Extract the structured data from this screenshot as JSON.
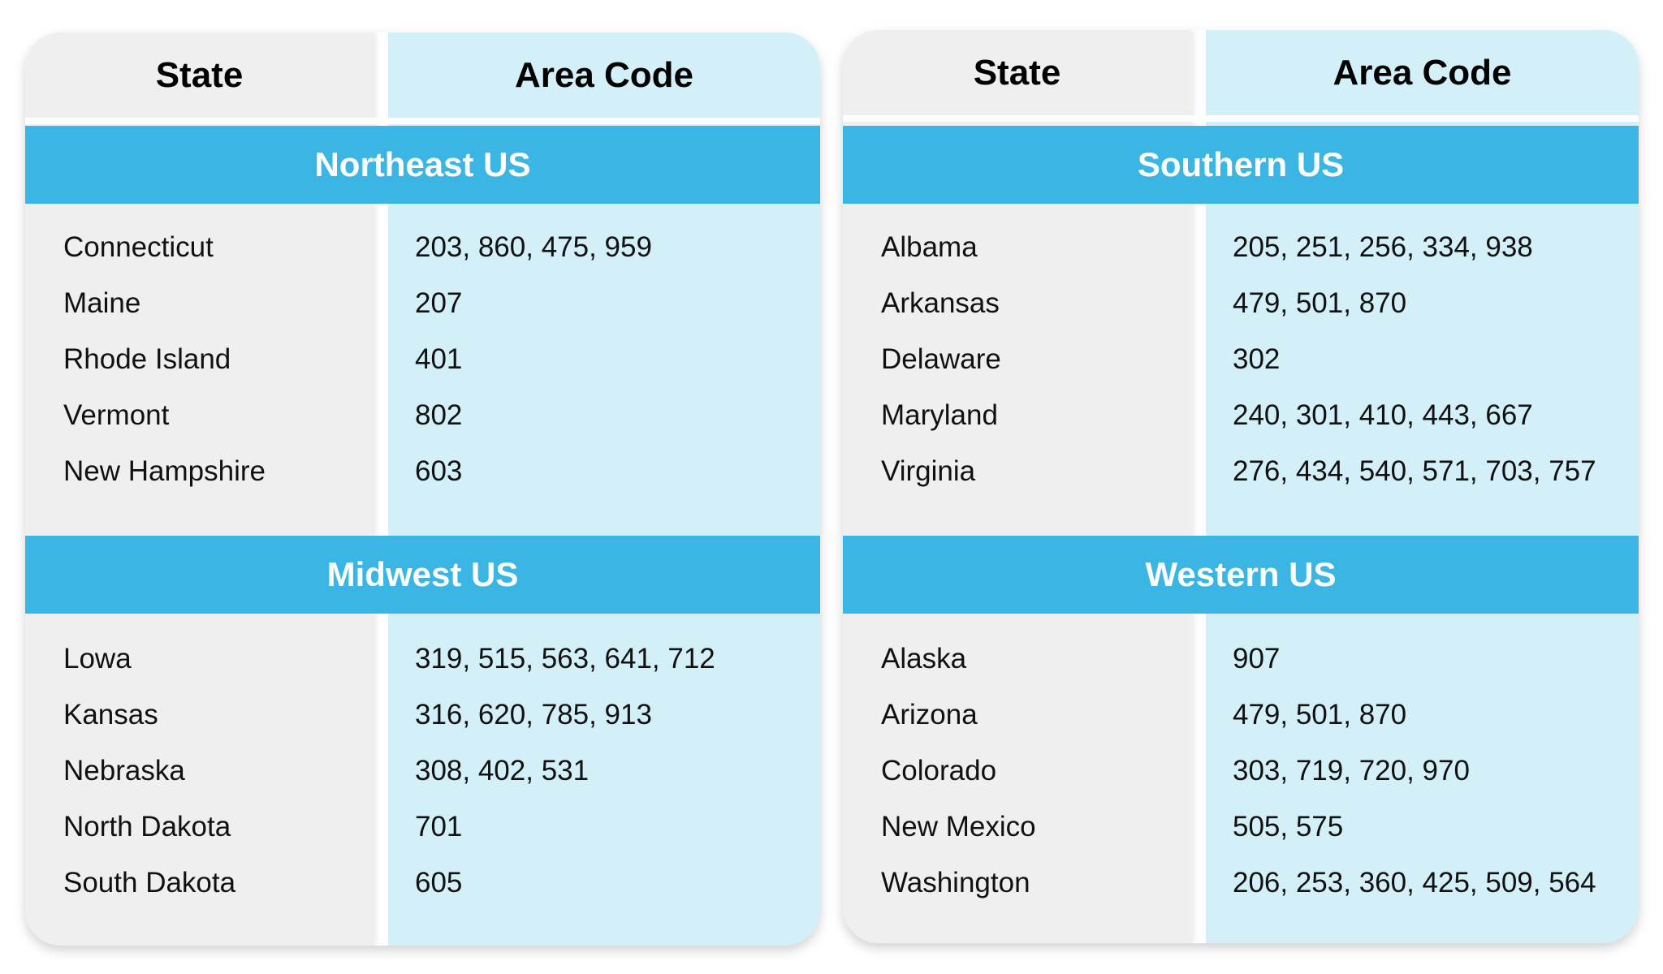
{
  "headers": {
    "state": "State",
    "area_code": "Area Code"
  },
  "colors": {
    "state_column": "#efefef",
    "area_code_column": "#d3eff7",
    "region_band": "#3bb6e4"
  },
  "cards": [
    {
      "regions": [
        {
          "title": "Northeast US",
          "rows": [
            {
              "state": "Connecticut",
              "codes": "203, 860, 475, 959"
            },
            {
              "state": "Maine",
              "codes": "207"
            },
            {
              "state": "Rhode Island",
              "codes": "401"
            },
            {
              "state": "Vermont",
              "codes": "802"
            },
            {
              "state": "New Hampshire",
              "codes": "603"
            }
          ]
        },
        {
          "title": "Midwest US",
          "rows": [
            {
              "state": "Lowa",
              "codes": "319, 515, 563, 641, 712"
            },
            {
              "state": "Kansas",
              "codes": "316, 620, 785, 913"
            },
            {
              "state": "Nebraska",
              "codes": "308, 402, 531"
            },
            {
              "state": "North Dakota",
              "codes": "701"
            },
            {
              "state": "South Dakota",
              "codes": "605"
            }
          ]
        }
      ]
    },
    {
      "regions": [
        {
          "title": "Southern US",
          "rows": [
            {
              "state": "Albama",
              "codes": "205, 251, 256, 334, 938"
            },
            {
              "state": "Arkansas",
              "codes": "479, 501, 870"
            },
            {
              "state": "Delaware",
              "codes": "302"
            },
            {
              "state": "Maryland",
              "codes": "240, 301, 410, 443, 667"
            },
            {
              "state": "Virginia",
              "codes": "276, 434, 540, 571, 703, 757"
            }
          ]
        },
        {
          "title": "Western US",
          "rows": [
            {
              "state": "Alaska",
              "codes": "907"
            },
            {
              "state": "Arizona",
              "codes": "479, 501, 870"
            },
            {
              "state": "Colorado",
              "codes": "303, 719, 720, 970"
            },
            {
              "state": "New Mexico",
              "codes": "505, 575"
            },
            {
              "state": "Washington",
              "codes": "206, 253, 360, 425, 509, 564"
            }
          ]
        }
      ]
    }
  ]
}
